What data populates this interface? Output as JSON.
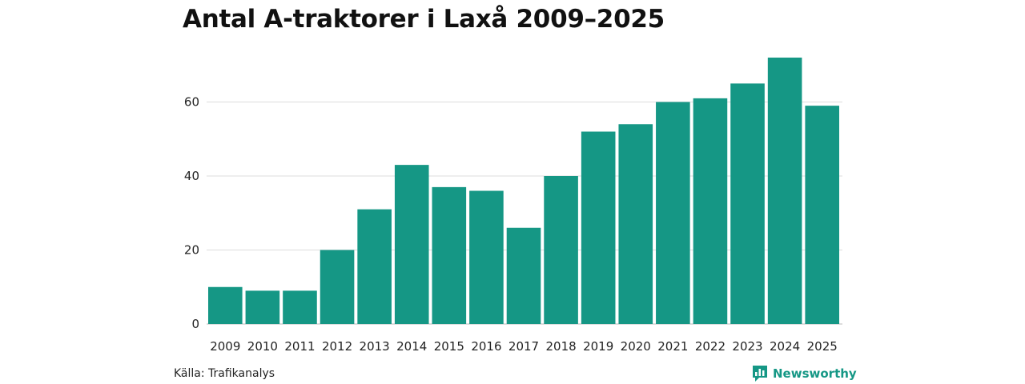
{
  "chart_data": {
    "type": "bar",
    "title": "Antal A-traktorer i Laxå 2009–2025",
    "categories": [
      "2009",
      "2010",
      "2011",
      "2012",
      "2013",
      "2014",
      "2015",
      "2016",
      "2017",
      "2018",
      "2019",
      "2020",
      "2021",
      "2022",
      "2023",
      "2024",
      "2025"
    ],
    "values": [
      10,
      9,
      9,
      20,
      31,
      43,
      37,
      36,
      26,
      40,
      52,
      54,
      60,
      61,
      65,
      72,
      59
    ],
    "yticks": [
      0,
      20,
      40,
      60
    ],
    "ylim": [
      0,
      72
    ],
    "xlabel": "",
    "ylabel": "",
    "grid": true,
    "bar_color": "#159785"
  },
  "footer": {
    "source": "Källa: Trafikanalys",
    "brand": "Newsworthy",
    "brand_color": "#159785"
  }
}
